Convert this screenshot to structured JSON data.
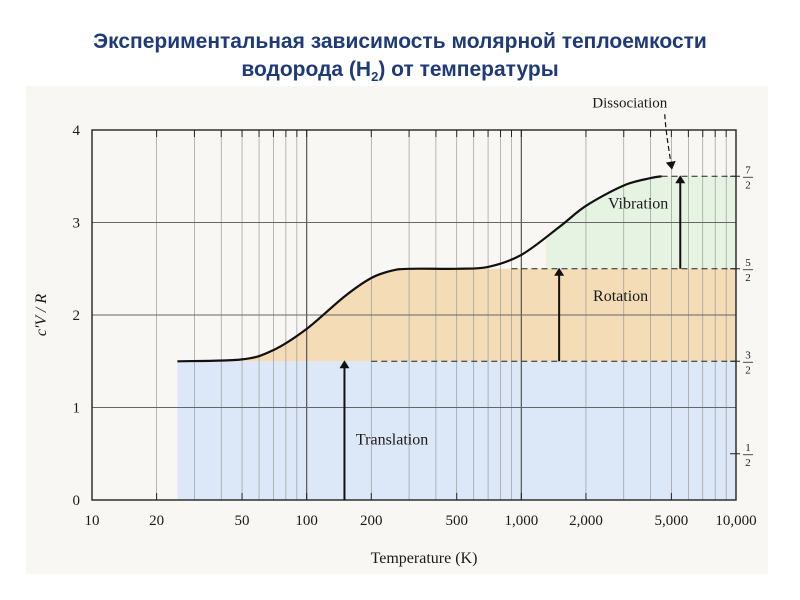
{
  "heading": {
    "line1": "Экспериментальная зависимость молярной теплоемкости",
    "line2_pre": "водорода (H",
    "line2_sub": "2",
    "line2_post": ")  от температуры"
  },
  "colors": {
    "translation_fill": "#dce8f7",
    "rotation_fill": "#f3dcb6",
    "vibration_fill": "#e6f3e2",
    "curve": "#111111",
    "heading": "#1f3a78"
  },
  "chart_data": {
    "type": "line",
    "title": "",
    "xlabel": "Temperature (K)",
    "ylabel": "c′V / R",
    "x_scale": "log",
    "xlim": [
      10,
      10000
    ],
    "ylim": [
      0,
      4
    ],
    "grid": true,
    "x_ticks": [
      {
        "value": 10,
        "label": "10"
      },
      {
        "value": 20,
        "label": "20"
      },
      {
        "value": 50,
        "label": "50"
      },
      {
        "value": 100,
        "label": "100"
      },
      {
        "value": 200,
        "label": "200"
      },
      {
        "value": 500,
        "label": "500"
      },
      {
        "value": 1000,
        "label": "1,000"
      },
      {
        "value": 2000,
        "label": "2,000"
      },
      {
        "value": 5000,
        "label": "5,000"
      },
      {
        "value": 10000,
        "label": "10,000"
      }
    ],
    "y_ticks": [
      {
        "value": 0,
        "label": "0"
      },
      {
        "value": 1,
        "label": "1"
      },
      {
        "value": 2,
        "label": "2"
      },
      {
        "value": 3,
        "label": "3"
      },
      {
        "value": 4,
        "label": "4"
      }
    ],
    "right_ticks": [
      {
        "value": 0.5,
        "num": "1",
        "den": "2"
      },
      {
        "value": 1.5,
        "num": "3",
        "den": "2"
      },
      {
        "value": 2.5,
        "num": "5",
        "den": "2"
      },
      {
        "value": 3.5,
        "num": "7",
        "den": "2"
      }
    ],
    "series": [
      {
        "values": [
          [
            25,
            1.5
          ],
          [
            50,
            1.52
          ],
          [
            70,
            1.62
          ],
          [
            100,
            1.85
          ],
          [
            150,
            2.2
          ],
          [
            200,
            2.4
          ],
          [
            250,
            2.48
          ],
          [
            300,
            2.5
          ],
          [
            500,
            2.5
          ],
          [
            700,
            2.52
          ],
          [
            1000,
            2.65
          ],
          [
            1500,
            2.95
          ],
          [
            2000,
            3.18
          ],
          [
            3000,
            3.4
          ],
          [
            4000,
            3.48
          ],
          [
            4500,
            3.5
          ]
        ]
      }
    ],
    "regions": [
      {
        "label": "Translation",
        "y0": 0,
        "y1": 1.5,
        "x0": 25,
        "x1": 10000,
        "arrow_x": 150,
        "label_x": 250,
        "label_y": 0.6
      },
      {
        "label": "Rotation",
        "y0": 1.5,
        "y1": 2.5,
        "x0": 25,
        "x1": 10000,
        "arrow_x": 1500,
        "label_x": 2900,
        "label_y": 2.15
      },
      {
        "label": "Vibration",
        "y0": 2.5,
        "y1": 3.5,
        "x0": 1300,
        "x1": 10000,
        "arrow_x": 5500,
        "label_x": 3500,
        "label_y": 3.15
      }
    ],
    "dashed_levels": [
      {
        "y": 1.5,
        "x_from": 200
      },
      {
        "y": 2.5,
        "x_from": 900
      },
      {
        "y": 3.5,
        "x_from": 4500
      }
    ],
    "annotation": {
      "text": "Dissociation",
      "x": 3200,
      "y": 4.3,
      "arrow_to_x": 5000,
      "arrow_to_y": 3.55
    }
  }
}
